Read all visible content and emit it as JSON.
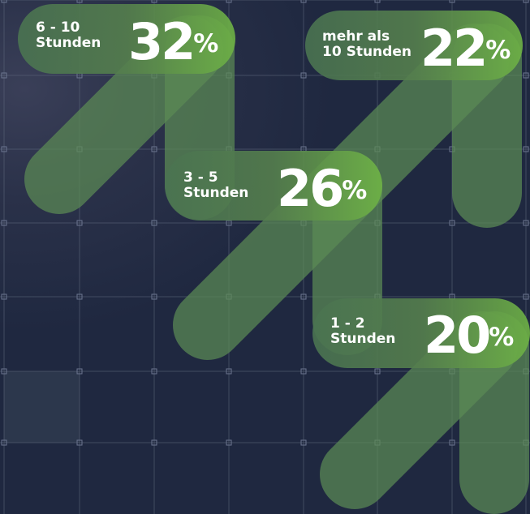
{
  "chart_data": {
    "type": "bar",
    "unit": "%",
    "categories": [
      "6 - 10 Stunden",
      "mehr als 10 Stunden",
      "3 - 5 Stunden",
      "1 - 2 Stunden"
    ],
    "values": [
      32,
      22,
      26,
      20
    ],
    "items": [
      {
        "line1": "6 - 10",
        "line2": "Stunden",
        "value": "32",
        "sign": "%"
      },
      {
        "line1": "mehr als",
        "line2": "10 Stunden",
        "value": "22",
        "sign": "%"
      },
      {
        "line1": "3 - 5",
        "line2": "Stunden",
        "value": "26",
        "sign": "%"
      },
      {
        "line1": "1 - 2",
        "line2": "Stunden",
        "value": "20",
        "sign": "%"
      }
    ],
    "colors": {
      "pill_dark": "#4a7351",
      "pill_light": "#6eb245",
      "background": "#1f2840",
      "grid": "#5a6478"
    }
  }
}
